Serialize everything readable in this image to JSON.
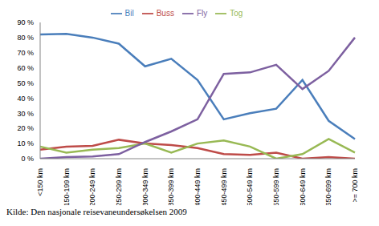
{
  "chart_data": {
    "type": "line",
    "categories": [
      "<150 km",
      "150-199 km",
      "200-249 km",
      "250-299 km",
      "300-349 km",
      "350-399 km",
      "400-449 km",
      "450-499 km",
      "500-549 km",
      "550-599 km",
      "600-649 km",
      "650-699 km",
      ">= 700 km"
    ],
    "series": [
      {
        "name": "Bil",
        "color": "#4a7ebb",
        "values": [
          82,
          82.5,
          80,
          76,
          61,
          66,
          52,
          26,
          30,
          33,
          52,
          25,
          13
        ]
      },
      {
        "name": "Buss",
        "color": "#be4b48",
        "values": [
          6,
          8,
          8.5,
          12.5,
          10,
          9,
          7,
          3,
          2.5,
          4,
          0,
          1,
          0
        ]
      },
      {
        "name": "Tog",
        "color": "#98b954",
        "values": [
          8,
          4,
          6,
          7,
          10,
          4,
          10,
          12,
          8,
          0,
          3,
          13,
          4
        ]
      },
      {
        "name": "Fly",
        "color": "#7d60a0",
        "values": [
          0,
          1,
          1.5,
          3,
          11,
          18,
          26,
          56,
          57,
          62,
          46,
          58,
          80
        ]
      }
    ],
    "ylim": [
      0,
      90
    ],
    "yticks": [
      {
        "value": 0,
        "label": "0 %"
      },
      {
        "value": 10,
        "label": "10 %"
      },
      {
        "value": 20,
        "label": "20 %"
      },
      {
        "value": 30,
        "label": "30 %"
      },
      {
        "value": 40,
        "label": "40 %"
      },
      {
        "value": 50,
        "label": "50 %"
      },
      {
        "value": 60,
        "label": "60 %"
      },
      {
        "value": 70,
        "label": "70 %"
      },
      {
        "value": 80,
        "label": "80 %"
      },
      {
        "value": 90,
        "label": "90 %"
      }
    ],
    "legend": "top",
    "grid": false,
    "annotation": "Kilde: Den nasjonale reisevaneundersøkelsen 2009"
  }
}
